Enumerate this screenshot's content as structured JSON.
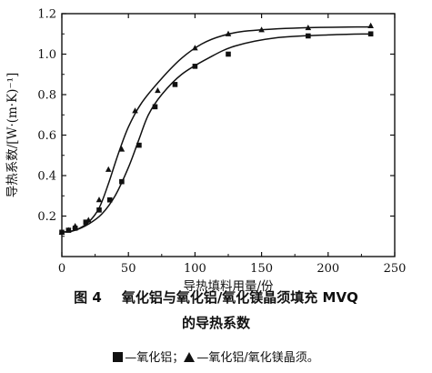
{
  "chart_data": {
    "type": "line",
    "xlabel": "导热填料用量/份",
    "ylabel": "导热系数/[W·(m·K)⁻¹]",
    "xlim": [
      0,
      250
    ],
    "ylim": [
      0,
      1.2
    ],
    "x_ticks": [
      "0",
      "50",
      "100",
      "150",
      "200",
      "250"
    ],
    "y_ticks": [
      "0.2",
      "0.4",
      "0.6",
      "0.8",
      "1.0",
      "1.2"
    ],
    "grid": false,
    "series": [
      {
        "name": "氧化铝",
        "marker": "square",
        "points": [
          [
            0,
            0.12
          ],
          [
            5,
            0.13
          ],
          [
            10,
            0.14
          ],
          [
            18,
            0.17
          ],
          [
            28,
            0.23
          ],
          [
            36,
            0.28
          ],
          [
            45,
            0.37
          ],
          [
            58,
            0.55
          ],
          [
            70,
            0.74
          ],
          [
            85,
            0.85
          ],
          [
            100,
            0.94
          ],
          [
            125,
            1.0
          ],
          [
            185,
            1.09
          ],
          [
            232,
            1.1
          ]
        ],
        "curve": [
          [
            0,
            0.12
          ],
          [
            10,
            0.13
          ],
          [
            20,
            0.16
          ],
          [
            30,
            0.21
          ],
          [
            40,
            0.3
          ],
          [
            50,
            0.44
          ],
          [
            58,
            0.58
          ],
          [
            65,
            0.7
          ],
          [
            75,
            0.8
          ],
          [
            90,
            0.9
          ],
          [
            110,
            0.98
          ],
          [
            130,
            1.04
          ],
          [
            160,
            1.08
          ],
          [
            200,
            1.095
          ],
          [
            232,
            1.1
          ]
        ]
      },
      {
        "name": "氧化铝/氧化镁晶须",
        "marker": "triangle",
        "points": [
          [
            0,
            0.12
          ],
          [
            5,
            0.13
          ],
          [
            10,
            0.15
          ],
          [
            20,
            0.18
          ],
          [
            28,
            0.28
          ],
          [
            35,
            0.43
          ],
          [
            45,
            0.53
          ],
          [
            55,
            0.72
          ],
          [
            72,
            0.82
          ],
          [
            100,
            1.03
          ],
          [
            125,
            1.1
          ],
          [
            150,
            1.12
          ],
          [
            185,
            1.13
          ],
          [
            232,
            1.14
          ]
        ],
        "curve": [
          [
            0,
            0.12
          ],
          [
            10,
            0.13
          ],
          [
            20,
            0.17
          ],
          [
            28,
            0.24
          ],
          [
            35,
            0.36
          ],
          [
            42,
            0.5
          ],
          [
            50,
            0.64
          ],
          [
            60,
            0.76
          ],
          [
            75,
            0.88
          ],
          [
            90,
            0.98
          ],
          [
            105,
            1.05
          ],
          [
            120,
            1.09
          ],
          [
            140,
            1.115
          ],
          [
            180,
            1.13
          ],
          [
            232,
            1.135
          ]
        ]
      }
    ]
  },
  "caption": {
    "figure_number": "图 4",
    "title_line1": "氧化铝与氧化铝/氧化镁晶须填充 MVQ",
    "title_line2": "的导热系数",
    "legend_square_text": "—氧化铝；",
    "legend_triangle_text": "—氧化铝/氧化镁晶须。"
  }
}
